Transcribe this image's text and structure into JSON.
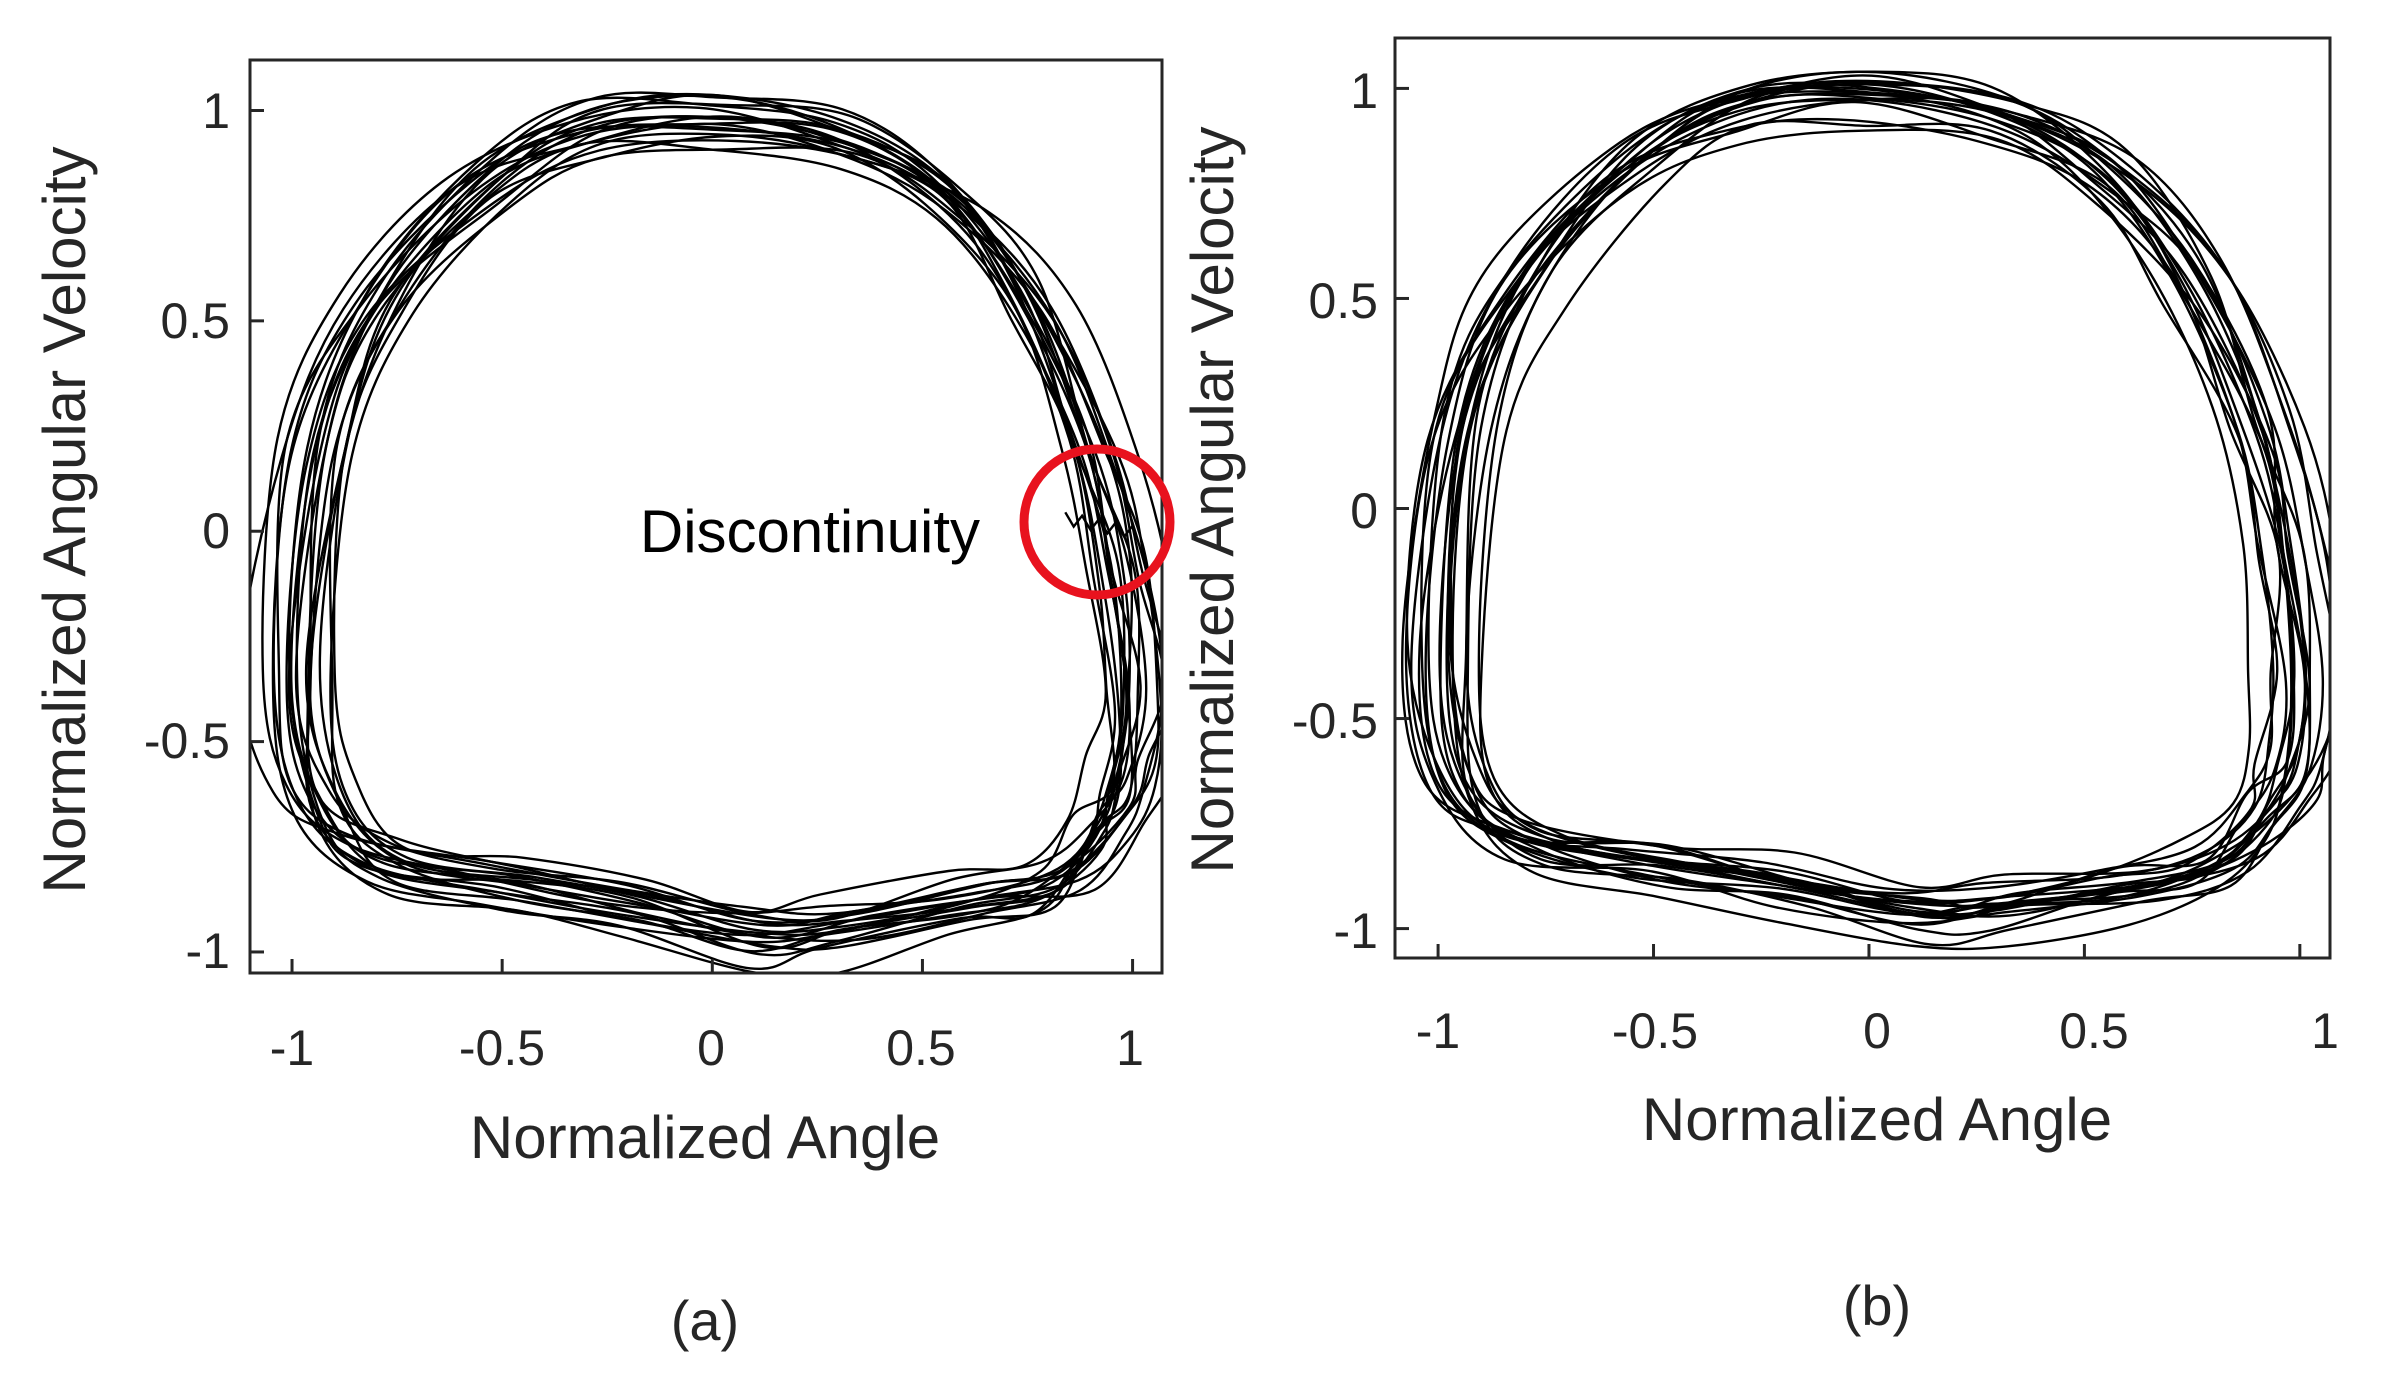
{
  "colors": {
    "trajectory": "#000000",
    "axis": "#262626",
    "annotation_circle": "#e8121e"
  },
  "chart_data": [
    {
      "type": "line",
      "panel_label": "(a)",
      "title": "",
      "xlabel": "Normalized Angle",
      "ylabel": "Normalized Angular Velocity",
      "xlim": [
        -1.1,
        1.07
      ],
      "ylim": [
        -1.05,
        1.12
      ],
      "xticks": [
        -1,
        -0.5,
        0,
        0.5,
        1
      ],
      "yticks": [
        -1,
        -0.5,
        0,
        0.5,
        1
      ],
      "xtick_labels": [
        "-1",
        "-0.5",
        "0",
        "0.5",
        "1"
      ],
      "ytick_labels": [
        "-1",
        "-0.5",
        "0",
        "0.5",
        "1"
      ],
      "grid": false,
      "annotation": {
        "text": "Discontinuity",
        "x": 0.92,
        "y": 0.03
      },
      "shape": {
        "description": "phase-portrait limit cycle, approx. 20 overlapping loops",
        "base_curve": {
          "angle": [
            -1.0,
            -0.95,
            -0.8,
            -0.55,
            -0.3,
            0.0,
            0.3,
            0.55,
            0.75,
            0.9,
            0.97,
            1.0,
            0.98,
            0.92,
            0.8,
            0.6,
            0.3,
            0.1,
            -0.2,
            -0.5,
            -0.8,
            -0.95
          ],
          "velocity": [
            -0.35,
            0.2,
            0.55,
            0.83,
            0.97,
            1.0,
            0.95,
            0.8,
            0.55,
            0.2,
            -0.1,
            -0.4,
            -0.6,
            -0.72,
            -0.85,
            -0.9,
            -0.95,
            -0.97,
            -0.9,
            -0.85,
            -0.8,
            -0.65
          ]
        },
        "cycles": 20,
        "discontinuity": true
      }
    },
    {
      "type": "line",
      "panel_label": "(b)",
      "title": "",
      "xlabel": "Normalized Angle",
      "ylabel": "Normalized Angular Velocity",
      "xlim": [
        -1.1,
        1.07
      ],
      "ylim": [
        -1.07,
        1.12
      ],
      "xticks": [
        -1,
        -0.5,
        0,
        0.5,
        1
      ],
      "yticks": [
        -1,
        -0.5,
        0,
        0.5,
        1
      ],
      "xtick_labels": [
        "-1",
        "-0.5",
        "0",
        "0.5",
        "1"
      ],
      "ytick_labels": [
        "-1",
        "-0.5",
        "0",
        "0.5",
        "1"
      ],
      "grid": false,
      "shape": {
        "description": "phase-portrait limit cycle, approx. 20 overlapping loops",
        "base_curve": {
          "angle": [
            -1.0,
            -0.95,
            -0.8,
            -0.55,
            -0.3,
            0.0,
            0.3,
            0.55,
            0.75,
            0.9,
            0.97,
            1.0,
            0.98,
            0.92,
            0.8,
            0.6,
            0.3,
            0.1,
            -0.2,
            -0.5,
            -0.8,
            -0.95
          ],
          "velocity": [
            -0.35,
            0.2,
            0.55,
            0.83,
            0.97,
            1.0,
            0.95,
            0.8,
            0.55,
            0.2,
            -0.1,
            -0.4,
            -0.6,
            -0.72,
            -0.85,
            -0.9,
            -0.95,
            -0.97,
            -0.9,
            -0.85,
            -0.8,
            -0.65
          ]
        },
        "cycles": 20,
        "discontinuity": false
      }
    }
  ]
}
